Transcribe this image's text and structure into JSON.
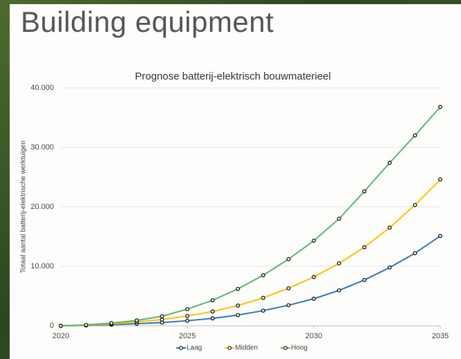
{
  "heading": "Building equipment",
  "chart_data": {
    "type": "line",
    "title": "Prognose batterij-elektrisch bouwmaterieel",
    "y_label": "Totaal aantal batterij-elektrische werktuigen",
    "x": [
      2020,
      2021,
      2022,
      2023,
      2024,
      2025,
      2026,
      2027,
      2028,
      2029,
      2030,
      2031,
      2032,
      2033,
      2034,
      2035
    ],
    "series": [
      {
        "name": "Laag",
        "color": "#2e75b6",
        "values": [
          0,
          60,
          180,
          350,
          550,
          850,
          1250,
          1800,
          2550,
          3450,
          4550,
          5950,
          7700,
          9800,
          12200,
          15100
        ]
      },
      {
        "name": "Midden",
        "color": "#ffc000",
        "values": [
          0,
          100,
          300,
          650,
          1050,
          1650,
          2400,
          3400,
          4700,
          6300,
          8200,
          10500,
          13200,
          16500,
          20300,
          24600
        ]
      },
      {
        "name": "Hoog",
        "color": "#5fb36f",
        "values": [
          0,
          150,
          450,
          900,
          1600,
          2800,
          4300,
          6200,
          8500,
          11200,
          14300,
          18000,
          22600,
          27400,
          32000,
          36800
        ]
      }
    ],
    "xlim": [
      2020,
      2035
    ],
    "xticks": [
      2020,
      2025,
      2030,
      2035
    ],
    "ylim": [
      0,
      40000
    ],
    "yticks": [
      0,
      {
        "value": 10000,
        "label": "10.000"
      },
      {
        "value": 20000,
        "label": "20.000"
      },
      {
        "value": 30000,
        "label": "30.000"
      },
      {
        "value": 40000,
        "label": "40.000"
      }
    ],
    "grid": true,
    "legend": "bottom"
  }
}
